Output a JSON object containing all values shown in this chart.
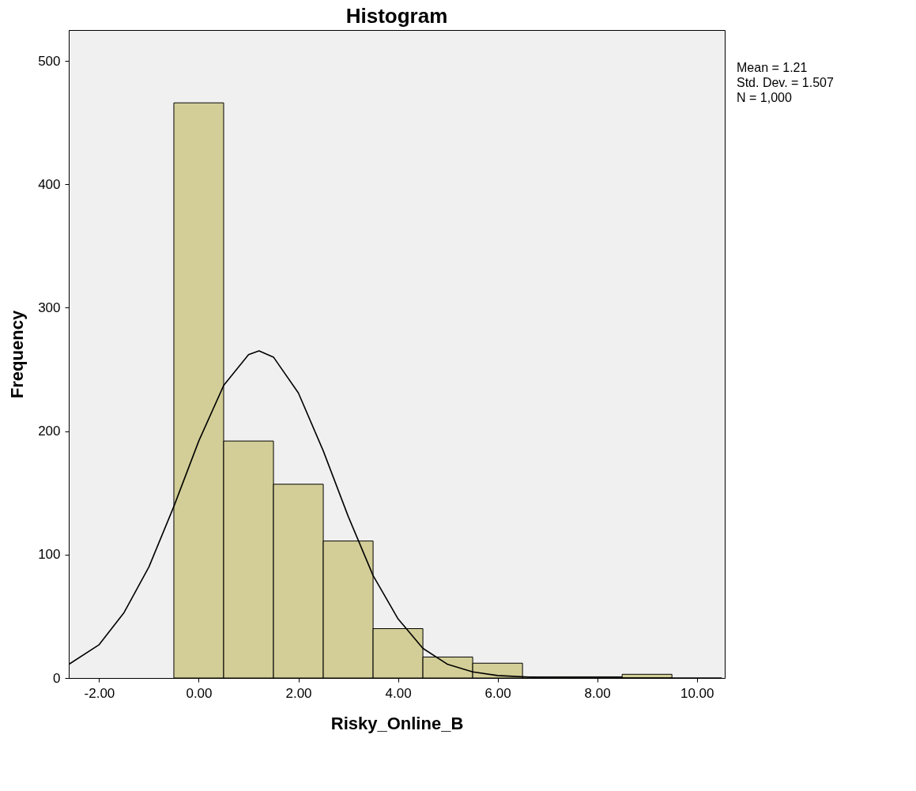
{
  "chart_data": {
    "type": "histogram",
    "title": "Histogram",
    "xlabel": "Risky_Online_B",
    "ylabel": "Frequency",
    "series": [
      {
        "color": "#d3ce97",
        "bins": [
          -0.5,
          0.5,
          1.5,
          2.5,
          3.5,
          4.5,
          5.5,
          6.5,
          7.5,
          8.5,
          9.5
        ],
        "values": [
          466,
          192,
          157,
          111,
          40,
          17,
          12,
          1,
          1,
          3
        ]
      },
      {
        "type": "line",
        "color": "#000000",
        "x": [
          -2.61,
          -2,
          -1.5,
          -1,
          -0.5,
          0,
          0.5,
          1,
          1.21,
          1.5,
          2,
          2.5,
          3,
          3.5,
          4,
          4.5,
          5,
          5.5,
          6,
          7,
          8,
          10.5
        ],
        "values": [
          11,
          27,
          53,
          90,
          139,
          192,
          237,
          262,
          265,
          260,
          231,
          184,
          131,
          83,
          48,
          24,
          11,
          5,
          2,
          0,
          0,
          0
        ]
      }
    ],
    "xlim": [
      -2.61,
      10.56
    ],
    "ylim": [
      0,
      525
    ],
    "xticks": [
      {
        "value": -2,
        "label": "-2.00"
      },
      {
        "value": 0,
        "label": "0.00"
      },
      {
        "value": 2,
        "label": "2.00"
      },
      {
        "value": 4,
        "label": "4.00"
      },
      {
        "value": 6,
        "label": "6.00"
      },
      {
        "value": 8,
        "label": "8.00"
      },
      {
        "value": 10,
        "label": "10.00"
      }
    ],
    "yticks": [
      0,
      100,
      200,
      300,
      400,
      500
    ],
    "annotations": [
      "Mean = 1.21",
      "Std. Dev. = 1.507",
      "N = 1,000"
    ]
  }
}
